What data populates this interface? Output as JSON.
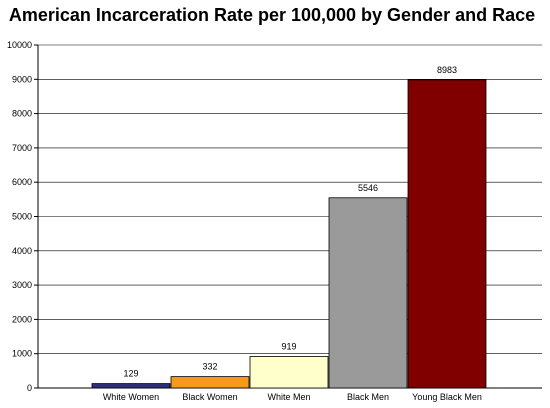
{
  "chart_data": {
    "type": "bar",
    "title": "American Incarceration Rate per 100,000 by Gender and Race",
    "xlabel": "",
    "ylabel": "",
    "categories": [
      "White Women",
      "Black Women",
      "White Men",
      "Black Men",
      "Young Black Men"
    ],
    "values": [
      129,
      332,
      919,
      5546,
      8983
    ],
    "colors": [
      "#2e2e7a",
      "#f59a1a",
      "#ffffcc",
      "#9a9a9a",
      "#800000"
    ],
    "ylim": [
      0,
      10000
    ],
    "yticks": [
      0,
      1000,
      2000,
      3000,
      4000,
      5000,
      6000,
      7000,
      8000,
      9000,
      10000
    ],
    "grid": true,
    "legend": "none"
  }
}
